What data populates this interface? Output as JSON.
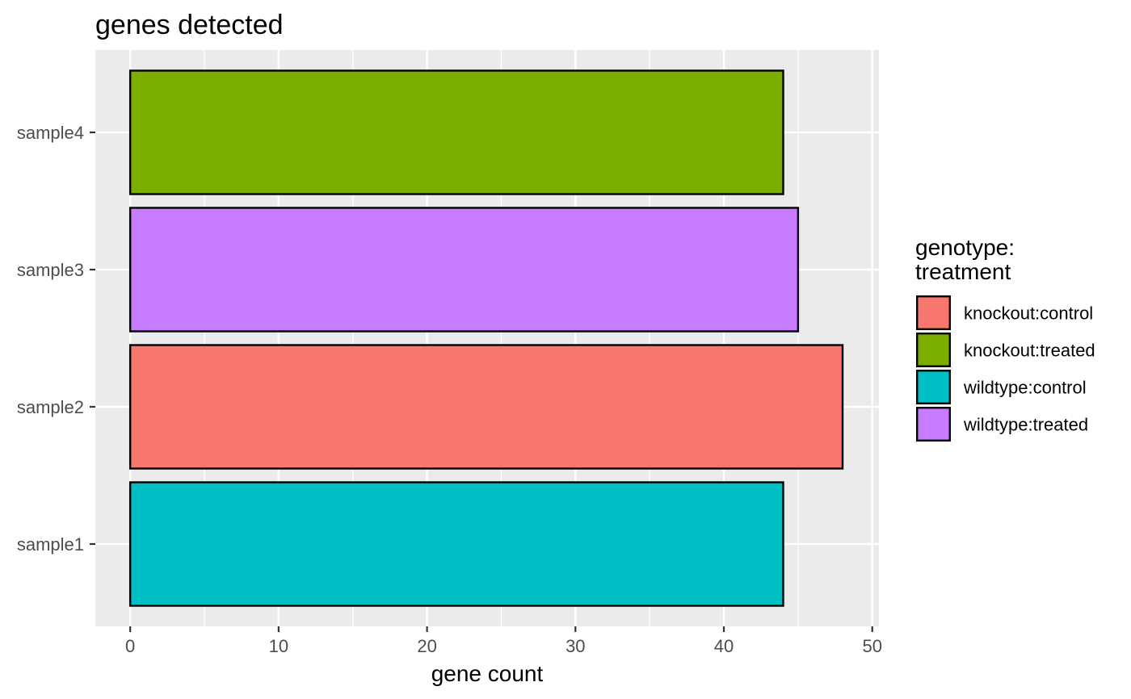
{
  "chart_data": {
    "type": "bar",
    "orientation": "horizontal",
    "title": "genes detected",
    "xlabel": "gene count",
    "ylabel": "",
    "xlim": [
      -2.35,
      50.45
    ],
    "xticks": [
      0,
      10,
      20,
      30,
      40,
      50
    ],
    "grid": true,
    "legend_position": "right",
    "legend_title_lines": [
      "genotype:",
      "treatment"
    ],
    "categories": [
      "sample1",
      "sample2",
      "sample3",
      "sample4"
    ],
    "values": [
      44,
      48,
      45,
      44
    ],
    "groups": [
      "wildtype:control",
      "knockout:control",
      "wildtype:treated",
      "knockout:treated"
    ],
    "legend": [
      {
        "label": "knockout:control",
        "color": "#F8766D"
      },
      {
        "label": "knockout:treated",
        "color": "#7CAE00"
      },
      {
        "label": "wildtype:control",
        "color": "#00BFC4"
      },
      {
        "label": "wildtype:treated",
        "color": "#C77CFF"
      }
    ],
    "panel_color": "#EBEBEB",
    "grid_color": "#FFFFFF",
    "bar_outline_color": "#000000"
  }
}
